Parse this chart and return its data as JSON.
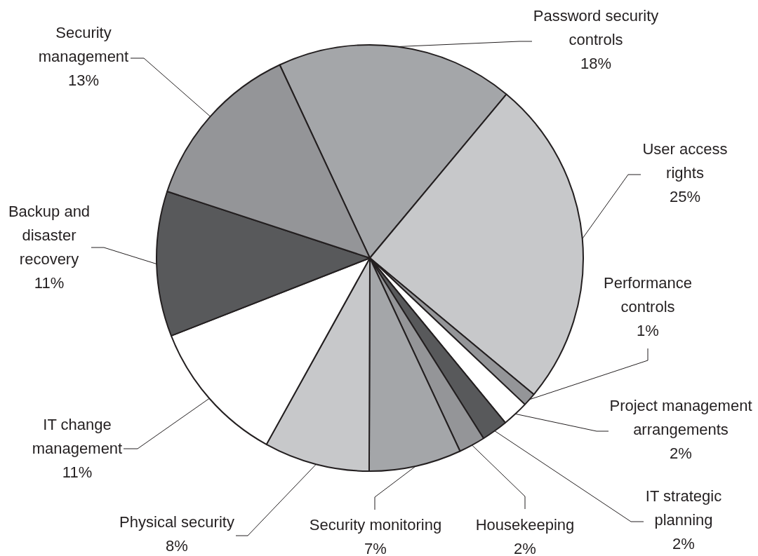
{
  "chart_data": {
    "type": "pie",
    "categories": [
      "Password security controls",
      "User access rights",
      "Performance controls",
      "Project management arrangements",
      "IT strategic planning",
      "Housekeeping",
      "Security monitoring",
      "Physical security",
      "IT change management",
      "Backup and disaster recovery",
      "Security management"
    ],
    "values": [
      18,
      25,
      1,
      2,
      2,
      2,
      7,
      8,
      11,
      11,
      13
    ],
    "value_labels": [
      "18%",
      "25%",
      "1%",
      "2%",
      "2%",
      "2%",
      "7%",
      "8%",
      "11%",
      "11%",
      "13%"
    ],
    "colors": [
      "#a4a6a9",
      "#c7c8ca",
      "#949598",
      "#ffffff",
      "#58595b",
      "#949598",
      "#a4a6a9",
      "#c7c8ca",
      "#ffffff",
      "#58595b",
      "#949598"
    ]
  }
}
